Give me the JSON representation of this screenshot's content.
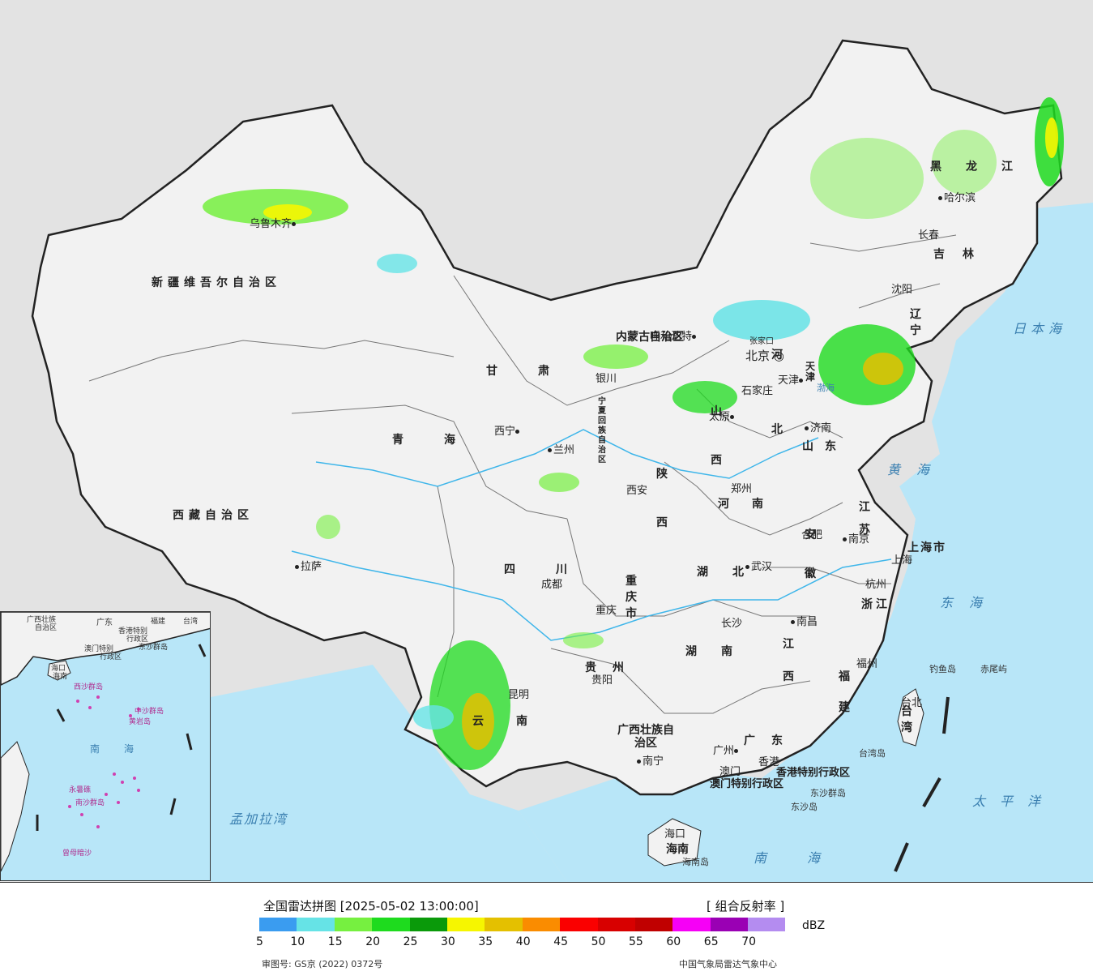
{
  "map": {
    "provinces": [
      {
        "name": "新疆维吾尔自治区"
      },
      {
        "name": "西藏自治区"
      },
      {
        "name": "青海"
      },
      {
        "name": "甘肃"
      },
      {
        "name": "四川"
      },
      {
        "name": "云南"
      },
      {
        "name": "贵州"
      },
      {
        "name": "广西壮族自治区"
      },
      {
        "name": "广东"
      },
      {
        "name": "湖南"
      },
      {
        "name": "湖北"
      },
      {
        "name": "江西"
      },
      {
        "name": "福建"
      },
      {
        "name": "浙江"
      },
      {
        "name": "江苏"
      },
      {
        "name": "安徽"
      },
      {
        "name": "河南"
      },
      {
        "name": "山东"
      },
      {
        "name": "河北"
      },
      {
        "name": "山西"
      },
      {
        "name": "陕西"
      },
      {
        "name": "宁夏回族自治区"
      },
      {
        "name": "内蒙古自治区"
      },
      {
        "name": "辽宁"
      },
      {
        "name": "吉林"
      },
      {
        "name": "黑龙江"
      },
      {
        "name": "台湾"
      },
      {
        "name": "海南"
      },
      {
        "name": "重庆市"
      },
      {
        "name": "上海市"
      },
      {
        "name": "天津"
      },
      {
        "name": "北京"
      },
      {
        "name": "香港特别行政区"
      },
      {
        "name": "澳门特别行政区"
      }
    ],
    "cities": [
      {
        "name": "乌鲁木齐"
      },
      {
        "name": "拉萨"
      },
      {
        "name": "西宁"
      },
      {
        "name": "兰州"
      },
      {
        "name": "银川"
      },
      {
        "name": "呼和浩特"
      },
      {
        "name": "北京"
      },
      {
        "name": "天津"
      },
      {
        "name": "石家庄"
      },
      {
        "name": "太原"
      },
      {
        "name": "济南"
      },
      {
        "name": "郑州"
      },
      {
        "name": "西安"
      },
      {
        "name": "成都"
      },
      {
        "name": "重庆"
      },
      {
        "name": "贵阳"
      },
      {
        "name": "昆明"
      },
      {
        "name": "南宁"
      },
      {
        "name": "广州"
      },
      {
        "name": "澳门"
      },
      {
        "name": "香港"
      },
      {
        "name": "海口"
      },
      {
        "name": "长沙"
      },
      {
        "name": "武汉"
      },
      {
        "name": "南昌"
      },
      {
        "name": "福州"
      },
      {
        "name": "台北"
      },
      {
        "name": "杭州"
      },
      {
        "name": "上海"
      },
      {
        "name": "南京"
      },
      {
        "name": "合肥"
      },
      {
        "name": "沈阳"
      },
      {
        "name": "长春"
      },
      {
        "name": "哈尔滨"
      },
      {
        "name": "张家口"
      }
    ],
    "seas": [
      {
        "name": "日本海"
      },
      {
        "name": "黄海"
      },
      {
        "name": "东海"
      },
      {
        "name": "太平洋"
      },
      {
        "name": "南海"
      },
      {
        "name": "孟加拉湾"
      },
      {
        "name": "渤海"
      }
    ],
    "islands": [
      {
        "name": "钓鱼岛"
      },
      {
        "name": "赤尾屿"
      },
      {
        "name": "台湾岛"
      },
      {
        "name": "东沙群岛"
      },
      {
        "name": "东沙岛"
      },
      {
        "name": "海南岛"
      }
    ],
    "inset": {
      "labels": [
        "广西壮族",
        "自治区",
        "广东",
        "福建",
        "台湾",
        "香港特别",
        "行政区",
        "澳门特别",
        "行政区",
        "东沙群岛",
        "海口",
        "海南",
        "西沙群岛",
        "中沙群岛",
        "黄岩岛",
        "南海",
        "南沙群岛",
        "永暑礁",
        "曾母暗沙"
      ]
    }
  },
  "legend": {
    "title": "全国雷达拼图 [2025-05-02 13:00:00]",
    "product": "[ 组合反射率 ]",
    "unit": "dBZ",
    "colors": [
      "#3a9cf0",
      "#66e3e6",
      "#76f040",
      "#1edb1e",
      "#0a9a0a",
      "#f6f600",
      "#e4c000",
      "#fa8c00",
      "#fa0000",
      "#d80000",
      "#c00000",
      "#f600f6",
      "#9a00b4",
      "#b48cf0"
    ],
    "ticks": [
      "5",
      "10",
      "15",
      "20",
      "25",
      "30",
      "35",
      "40",
      "45",
      "50",
      "55",
      "60",
      "65",
      "70"
    ],
    "approval": "审图号: GS京 (2022) 0372号",
    "source": "中国气象局雷达气象中心"
  }
}
